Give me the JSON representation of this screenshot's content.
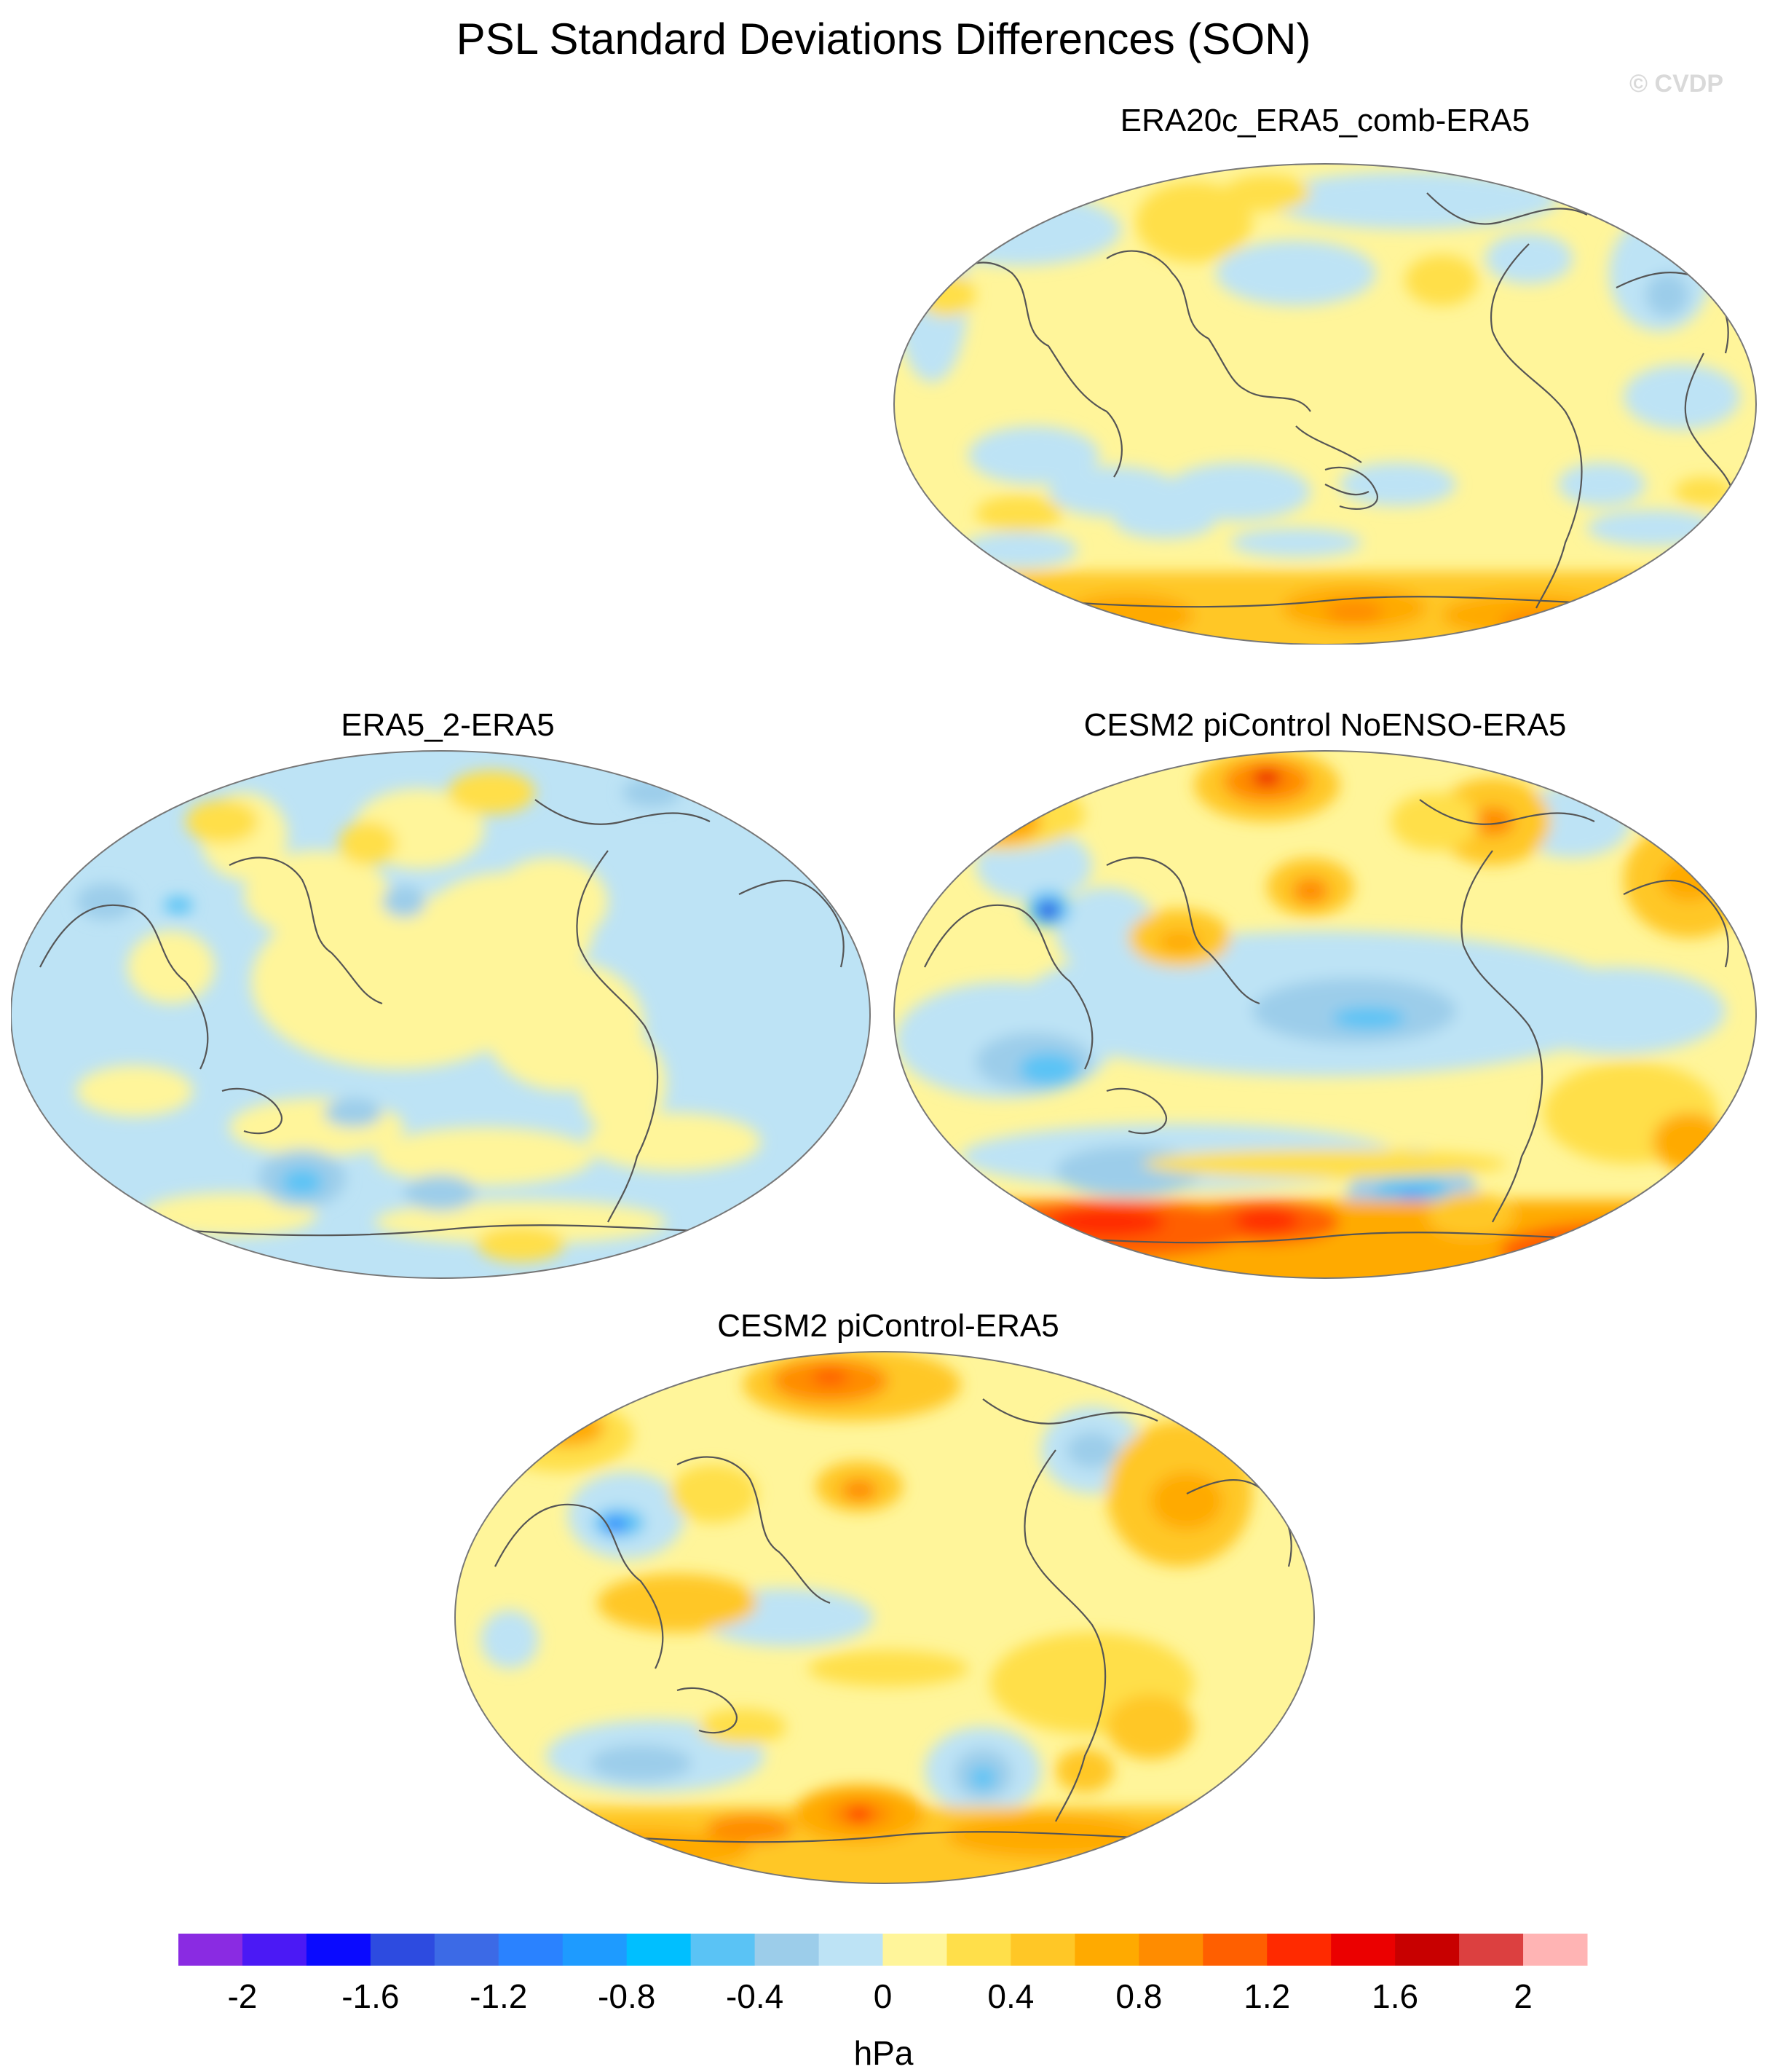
{
  "title": "PSL Standard Deviations Differences (SON)",
  "credit": "© CVDP",
  "panels": [
    {
      "id": "p1",
      "title": "ERA20c_ERA5_comb-ERA5"
    },
    {
      "id": "p2",
      "title": "ERA5_2-ERA5"
    },
    {
      "id": "p3",
      "title": "CESM2 piControl NoENSO-ERA5"
    },
    {
      "id": "p4",
      "title": "CESM2 piControl-ERA5"
    }
  ],
  "colorbar": {
    "units": "hPa",
    "colors": [
      "#8a2be2",
      "#4b19f5",
      "#0a0aff",
      "#2d4be0",
      "#3c6ae6",
      "#2a82ff",
      "#1e9bff",
      "#00bfff",
      "#5ac3f5",
      "#9ccdea",
      "#bde3f5",
      "#fff59a",
      "#ffdf4a",
      "#ffc726",
      "#ffaa00",
      "#ff8c00",
      "#ff5f00",
      "#ff2a00",
      "#eb0000",
      "#c80000",
      "#dc4040",
      "#ffb4b4"
    ],
    "tick_labels": [
      "-2",
      "-1.6",
      "-1.2",
      "-0.8",
      "-0.4",
      "0",
      "0.4",
      "0.8",
      "1.2",
      "1.6",
      "2"
    ]
  }
}
